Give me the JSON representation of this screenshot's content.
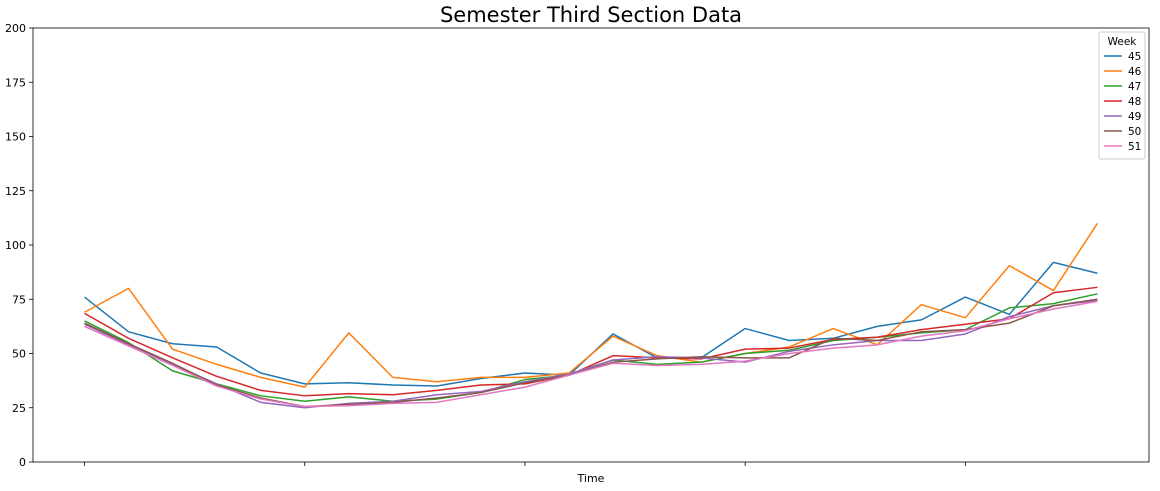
{
  "chart_data": {
    "type": "line",
    "title": "Semester Third Section Data",
    "xlabel": "Time",
    "ylabel": "",
    "ylim": [
      0,
      200
    ],
    "yticks": [
      0,
      25,
      50,
      75,
      100,
      125,
      150,
      175,
      200
    ],
    "x": [
      0,
      1,
      2,
      3,
      4,
      5,
      6,
      7,
      8,
      9,
      10,
      11,
      12,
      13,
      14,
      15,
      16,
      17,
      18,
      19,
      20,
      21,
      22,
      23
    ],
    "xlim": [
      -1.17,
      24.17
    ],
    "xticks": [
      0,
      5,
      10,
      15,
      20
    ],
    "grid": false,
    "legend": {
      "title": "Week",
      "position": "top-right"
    },
    "series": [
      {
        "name": "45",
        "color": "#1f77b4",
        "values": [
          76,
          60,
          54.5,
          53,
          41,
          36,
          36.5,
          35.5,
          35,
          38.5,
          41,
          40,
          59,
          48,
          48,
          61.5,
          56,
          57,
          62.5,
          65.5,
          76,
          68,
          92,
          87
        ]
      },
      {
        "name": "46",
        "color": "#ff7f0e",
        "values": [
          69,
          80,
          52,
          45,
          39,
          34.5,
          59.5,
          39,
          37,
          39,
          39,
          41,
          58,
          49,
          46,
          50,
          53,
          61.5,
          54,
          72.5,
          66.5,
          90.5,
          79,
          110
        ]
      },
      {
        "name": "47",
        "color": "#2ca02c",
        "values": [
          65,
          55,
          42,
          36,
          30.5,
          28,
          30,
          28,
          29,
          32,
          38,
          40,
          47,
          45,
          46,
          50,
          51.5,
          56,
          57.5,
          59.5,
          61,
          71,
          73,
          77.5
        ]
      },
      {
        "name": "48",
        "color": "#d62728",
        "values": [
          68.5,
          57,
          48,
          39.5,
          33,
          30.5,
          31.5,
          31,
          33,
          35.5,
          36,
          40,
          49,
          48,
          47.5,
          52,
          52.5,
          56.5,
          57.5,
          61,
          63.5,
          66,
          78,
          80.5
        ]
      },
      {
        "name": "49",
        "color": "#9467bd",
        "values": [
          63.5,
          54,
          45,
          36,
          27.5,
          25,
          27,
          28,
          31,
          32.5,
          37,
          40.5,
          47,
          48.5,
          48,
          46,
          51,
          54,
          56,
          56,
          59,
          67,
          72,
          74.5
        ]
      },
      {
        "name": "50",
        "color": "#8c564b",
        "values": [
          64,
          54.5,
          45.5,
          35.5,
          29.5,
          25.5,
          26.5,
          27.5,
          29.5,
          32,
          36.5,
          40,
          46,
          47.5,
          48.5,
          48,
          48,
          57,
          56,
          60,
          61,
          64,
          72,
          75
        ]
      },
      {
        "name": "51",
        "color": "#e377c2",
        "values": [
          62.5,
          53.5,
          44.5,
          35,
          29,
          25.5,
          26,
          27,
          27.5,
          31,
          34.5,
          40,
          45.5,
          44.5,
          45,
          46.5,
          50,
          52.5,
          54,
          58,
          60.5,
          66,
          70.5,
          74
        ]
      }
    ]
  }
}
